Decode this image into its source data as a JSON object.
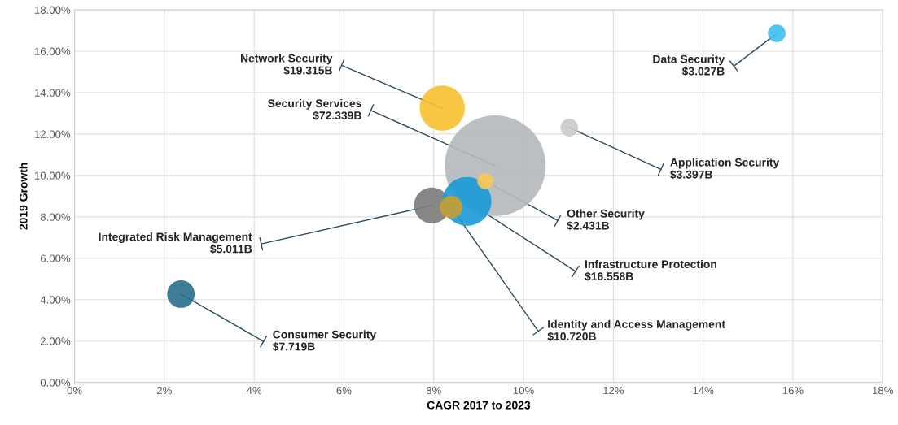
{
  "chart_data": {
    "type": "bubble",
    "xlabel": "CAGR 2017 to 2023",
    "ylabel": "2019 Growth",
    "x": [
      9.37,
      8.19,
      15.64,
      11.02,
      7.96,
      8.74,
      8.39,
      9.15,
      2.37
    ],
    "values": [
      10.47,
      13.25,
      16.86,
      12.31,
      8.55,
      8.75,
      8.47,
      9.73,
      4.27
    ],
    "sizes": [
      1,
      0.2,
      0.031,
      0.031,
      0.126,
      0.234,
      0.051,
      0.026,
      0.075
    ],
    "colors": [
      "#b4b8ba",
      "#f6c02e",
      "#3cc0f0",
      "#cacaca",
      "#7a7a7a",
      "#1a9ad6",
      "#c8a030",
      "#f6c858",
      "#2a6e8c"
    ],
    "xlim": [
      0,
      18
    ],
    "xticks": [
      {
        "value": 0,
        "label": "0%"
      },
      {
        "value": 2,
        "label": "2%"
      },
      {
        "value": 4,
        "label": "4%"
      },
      {
        "value": 6,
        "label": "6%"
      },
      {
        "value": 8,
        "label": "8%"
      },
      {
        "value": 10,
        "label": "10%"
      },
      {
        "value": 12,
        "label": "12%"
      },
      {
        "value": 14,
        "label": "14%"
      },
      {
        "value": 16,
        "label": "16%"
      },
      {
        "value": 18,
        "label": "18%"
      }
    ],
    "ylim": [
      0,
      18
    ],
    "yticks": [
      {
        "value": 0,
        "label": "0.00%"
      },
      {
        "value": 2,
        "label": "2.00%"
      },
      {
        "value": 4,
        "label": "4.00%"
      },
      {
        "value": 6,
        "label": "6.00%"
      },
      {
        "value": 8,
        "label": "8.00%"
      },
      {
        "value": 10,
        "label": "10.00%"
      },
      {
        "value": 12,
        "label": "12.00%"
      },
      {
        "value": 14,
        "label": "14.00%"
      },
      {
        "value": 16,
        "label": "16.00%"
      },
      {
        "value": 18,
        "label": "18.00%"
      }
    ],
    "grid": true,
    "annotations": [
      {
        "text": "Security Services\n$72.339B",
        "x": 9.37,
        "y": 10.47
      },
      {
        "text": "Network Security\n$19.315B",
        "x": 8.19,
        "y": 13.25
      },
      {
        "text": "Data Security\n$3.027B",
        "x": 15.64,
        "y": 16.86
      },
      {
        "text": "Application Security\n$3.397B",
        "x": 11.02,
        "y": 12.31
      },
      {
        "text": "Integrated Risk Management\n$5.011B",
        "x": 7.96,
        "y": 8.55
      },
      {
        "text": "Infrastructure Protection\n$16.558B",
        "x": 8.74,
        "y": 8.75
      },
      {
        "text": "Identity and Access Management\n$10.720B",
        "x": 8.39,
        "y": 8.47
      },
      {
        "text": "Other Security\n$2.431B",
        "x": 9.15,
        "y": 9.73
      },
      {
        "text": "Consumer Security\n$7.719B",
        "x": 2.37,
        "y": 4.27
      }
    ]
  }
}
